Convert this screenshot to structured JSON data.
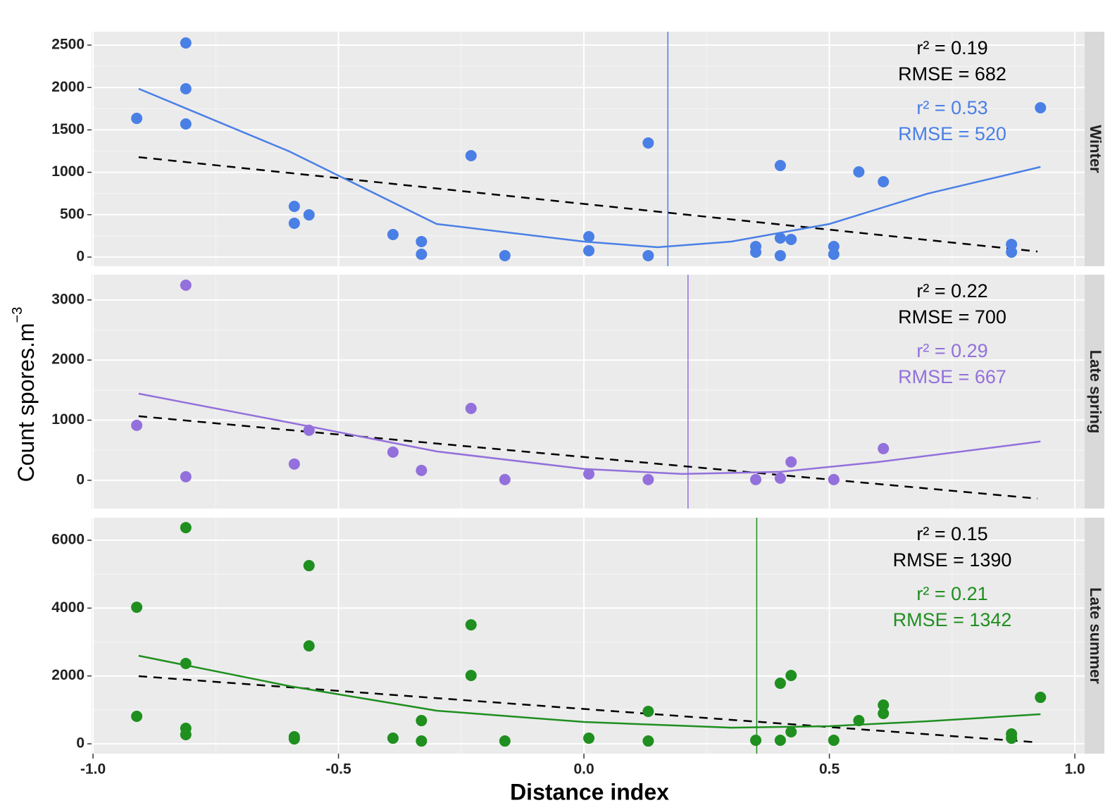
{
  "axes": {
    "xlabel": "Distance index",
    "ylabel": "Count spores.m",
    "ylabel_superscript": "−3",
    "xlim": [
      -1.003,
      1.02
    ],
    "xticks": [
      {
        "value": -1,
        "label": "-1.0"
      },
      -0.5,
      {
        "value": 0,
        "label": "0.0"
      },
      0.5,
      {
        "value": 1,
        "label": "1.0"
      }
    ]
  },
  "chart_data": [
    {
      "type": "scatter",
      "strip": "Winter",
      "ylim": [
        -108,
        2658
      ],
      "yticks": [
        0,
        500,
        1000,
        1500,
        2000,
        2500
      ],
      "points": {
        "color": "#4a7fe6",
        "x": [
          -0.911,
          -0.811,
          -0.811,
          -0.811,
          -0.59,
          -0.59,
          -0.56,
          -0.389,
          -0.331,
          -0.331,
          -0.23,
          -0.161,
          0.01,
          0.01,
          0.131,
          0.131,
          0.35,
          0.35,
          0.4,
          0.4,
          0.4,
          0.422,
          0.509,
          0.509,
          0.56,
          0.61,
          0.871,
          0.871,
          0.93
        ],
        "values": [
          1636,
          2525,
          1985,
          1570,
          598,
          399,
          498,
          266,
          183,
          33,
          1196,
          17,
          241,
          75,
          1346,
          17,
          125,
          58,
          1080,
          224,
          17,
          208,
          125,
          33,
          1005,
          889,
          150,
          58,
          1761
        ]
      },
      "fit_linear": {
        "color": "#000000",
        "x": [
          -0.907,
          0.924
        ],
        "values": [
          1179,
          66
        ]
      },
      "fit_quadratic": {
        "color": "#4a7fe6",
        "x": [
          -0.907,
          -0.6,
          -0.3,
          0.0,
          0.15,
          0.3,
          0.5,
          0.7,
          0.93
        ],
        "values": [
          1985,
          1246,
          390,
          183,
          116,
          183,
          390,
          748,
          1063
        ]
      },
      "vline_x": 0.171,
      "annotations": [
        {
          "text": "r² = 0.19",
          "color": "#000000"
        },
        {
          "text": "RMSE = 682",
          "color": "#000000"
        },
        {
          "text": "r² = 0.53",
          "color": "#4a7fe6"
        },
        {
          "text": "RMSE = 520",
          "color": "#4a7fe6"
        }
      ]
    },
    {
      "type": "scatter",
      "strip": "Late spring",
      "ylim": [
        -470,
        3420
      ],
      "yticks": [
        0,
        1000,
        2000,
        3000
      ],
      "points": {
        "color": "#9370db",
        "x": [
          -0.911,
          -0.811,
          -0.811,
          -0.59,
          -0.56,
          -0.389,
          -0.331,
          -0.23,
          -0.161,
          0.01,
          0.131,
          0.35,
          0.4,
          0.422,
          0.509,
          0.61
        ],
        "values": [
          914,
          3246,
          59,
          270,
          832,
          469,
          164,
          1195,
          12,
          105,
          12,
          12,
          35,
          305,
          12,
          527
        ]
      },
      "fit_linear": {
        "color": "#000000",
        "x": [
          -0.907,
          0.924
        ],
        "values": [
          1066,
          -305
        ]
      },
      "fit_quadratic": {
        "color": "#9370db",
        "x": [
          -0.907,
          -0.6,
          -0.3,
          0.0,
          0.2,
          0.4,
          0.6,
          0.93
        ],
        "values": [
          1441,
          961,
          480,
          188,
          105,
          141,
          305,
          645
        ]
      },
      "vline_x": 0.212,
      "annotations": [
        {
          "text": "r² = 0.22",
          "color": "#000000"
        },
        {
          "text": "RMSE = 700",
          "color": "#000000"
        },
        {
          "text": "r² = 0.29",
          "color": "#9370db"
        },
        {
          "text": "RMSE = 667",
          "color": "#9370db"
        }
      ]
    },
    {
      "type": "scatter",
      "strip": "Late summer",
      "ylim": [
        -290,
        6665
      ],
      "yticks": [
        0,
        2000,
        4000,
        6000
      ],
      "points": {
        "color": "#1f8f1f",
        "x": [
          -0.911,
          -0.911,
          -0.811,
          -0.811,
          -0.811,
          -0.811,
          -0.59,
          -0.59,
          -0.56,
          -0.56,
          -0.389,
          -0.331,
          -0.331,
          -0.23,
          -0.23,
          -0.161,
          0.01,
          0.131,
          0.131,
          0.35,
          0.4,
          0.4,
          0.422,
          0.422,
          0.509,
          0.56,
          0.61,
          0.61,
          0.871,
          0.871,
          0.93
        ],
        "values": [
          4027,
          810,
          6373,
          2367,
          457,
          270,
          208,
          145,
          5252,
          2886,
          166,
          685,
          83,
          3508,
          2014,
          83,
          166,
          955,
          83,
          104,
          1785,
          104,
          2014,
          353,
          104,
          685,
          1142,
          893,
          291,
          166,
          1370
        ]
      },
      "fit_linear": {
        "color": "#000000",
        "x": [
          -0.907,
          0.924
        ],
        "values": [
          1993,
          42
        ]
      },
      "fit_quadratic": {
        "color": "#1f8f1f",
        "x": [
          -0.907,
          -0.6,
          -0.3,
          0.0,
          0.3,
          0.5,
          0.7,
          0.93
        ],
        "values": [
          2595,
          1702,
          976,
          644,
          477,
          519,
          664,
          872
        ]
      },
      "vline_x": 0.352,
      "annotations": [
        {
          "text": "r² = 0.15",
          "color": "#000000"
        },
        {
          "text": "RMSE = 1390",
          "color": "#000000"
        },
        {
          "text": "r² = 0.21",
          "color": "#1f8f1f"
        },
        {
          "text": "RMSE = 1342",
          "color": "#1f8f1f"
        }
      ]
    }
  ]
}
